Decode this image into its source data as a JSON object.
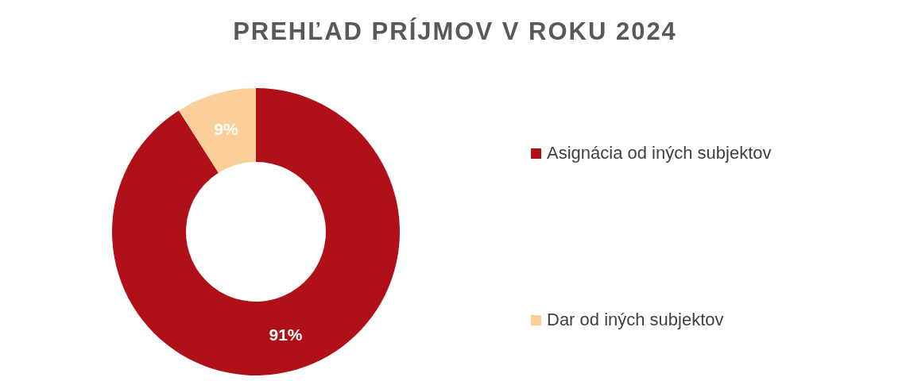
{
  "chart_data": {
    "type": "donut",
    "title": "PREHĽAD PRÍJMOV V ROKU 2024",
    "categories": [
      "Asignácia od iných subjektov",
      "Dar od iných subjektov"
    ],
    "values": [
      91,
      9
    ],
    "colors": [
      "#b01018",
      "#fbcf99"
    ],
    "value_labels": [
      "91%",
      "9%"
    ],
    "legend": "right"
  }
}
